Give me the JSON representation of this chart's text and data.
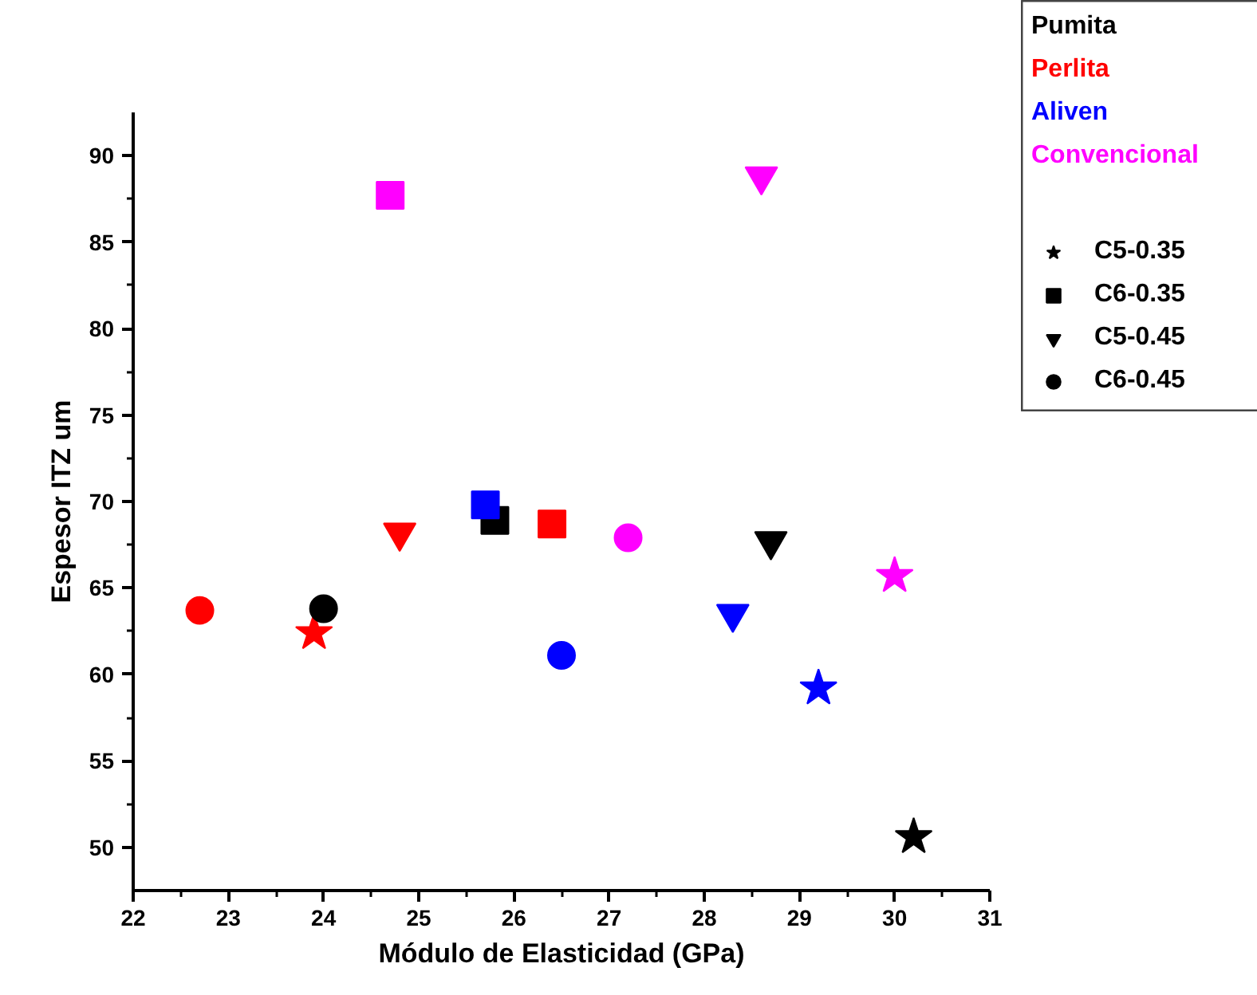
{
  "chart_data": {
    "type": "scatter",
    "xlabel": "Módulo de Elasticidad (GPa)",
    "ylabel": "Espesor ITZ um",
    "xlim": [
      22,
      31
    ],
    "xticks": [
      22,
      23,
      24,
      25,
      26,
      27,
      28,
      29,
      30,
      31
    ],
    "ylim": [
      47.5,
      92.5
    ],
    "yticks": [
      50,
      55,
      60,
      65,
      70,
      75,
      80,
      85,
      90
    ],
    "grid": false,
    "legend": "top right",
    "series": [
      {
        "name": "Pumita",
        "color": "#000000"
      },
      {
        "name": "Perlita",
        "color": "#ff0000"
      },
      {
        "name": "Aliven",
        "color": "#0000ff"
      },
      {
        "name": "Convencional",
        "color": "#ff00ff"
      },
      {
        "name": "C5-0.35",
        "marker": "star",
        "color": "#000000",
        "colors": [
          "#000000",
          "#ff0000",
          "#0000ff",
          "#ff00ff"
        ],
        "x": [
          30.2,
          23.9,
          29.2,
          30.0
        ],
        "values": [
          50.6,
          62.4,
          59.2,
          65.7
        ]
      },
      {
        "name": "C6-0.35",
        "marker": "square",
        "color": "#000000",
        "colors": [
          "#000000",
          "#ff0000",
          "#0000ff",
          "#ff00ff"
        ],
        "x": [
          25.8,
          26.4,
          25.7,
          24.7
        ],
        "values": [
          68.9,
          68.7,
          69.8,
          87.7
        ]
      },
      {
        "name": "C5-0.45",
        "marker": "triangle",
        "color": "#000000",
        "colors": [
          "#000000",
          "#ff0000",
          "#0000ff",
          "#ff00ff"
        ],
        "x": [
          28.7,
          24.8,
          28.3,
          28.6
        ],
        "values": [
          67.7,
          68.2,
          63.5,
          88.8
        ]
      },
      {
        "name": "C6-0.45",
        "marker": "circle",
        "color": "#000000",
        "colors": [
          "#000000",
          "#ff0000",
          "#0000ff",
          "#ff00ff"
        ],
        "x": [
          24.0,
          22.7,
          26.5,
          27.2
        ],
        "values": [
          63.8,
          63.7,
          61.1,
          67.9
        ]
      }
    ]
  }
}
